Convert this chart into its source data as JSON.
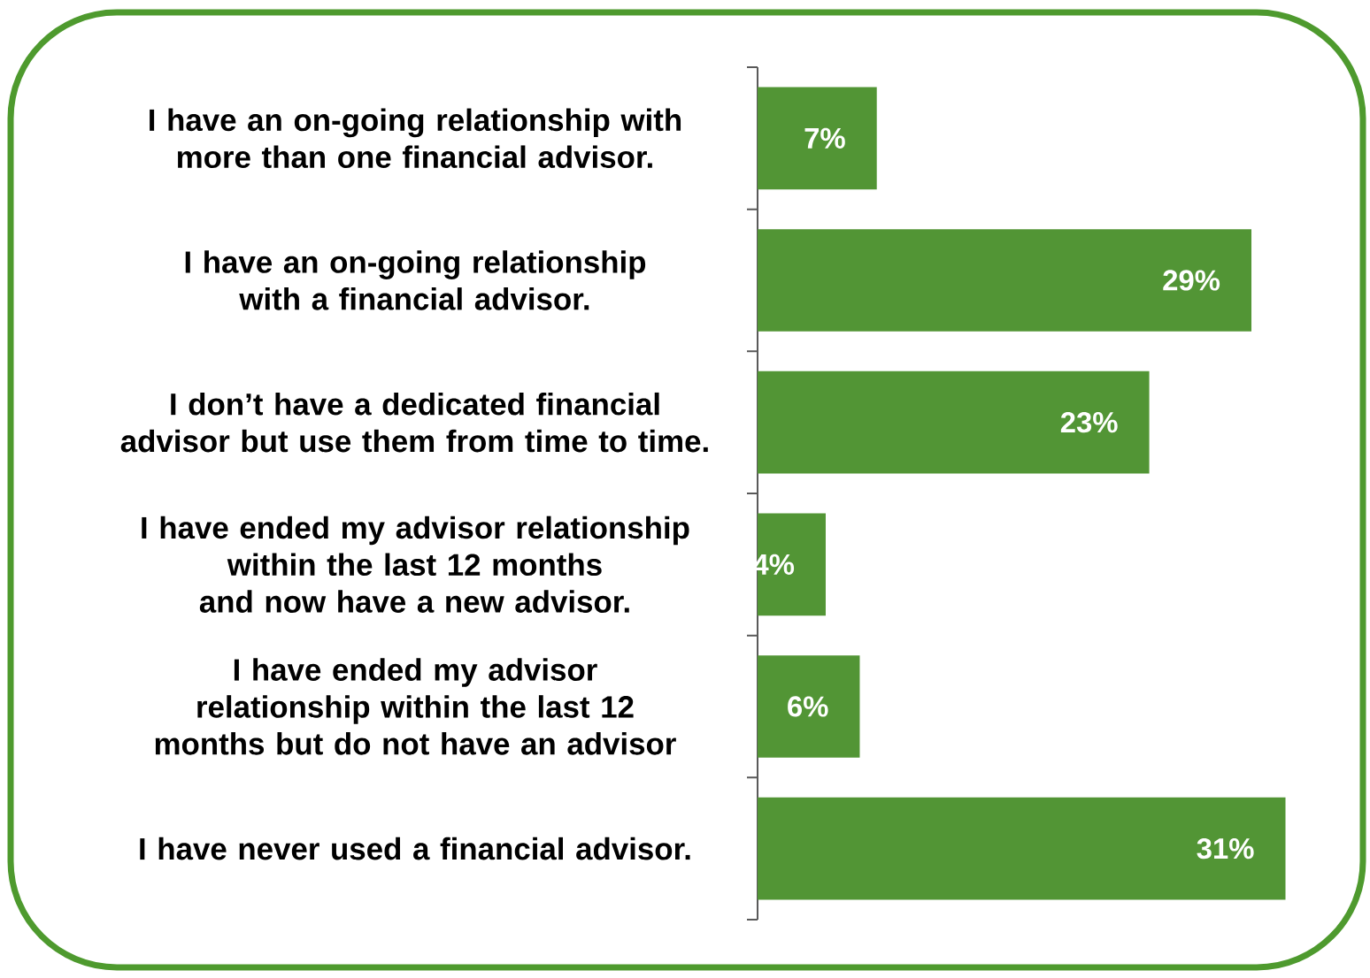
{
  "chart_data": {
    "type": "bar",
    "orientation": "horizontal",
    "categories": [
      "I have an on-going relationship with more than one financial advisor.",
      "I have an on-going relationship with a financial advisor.",
      "I don’t have a dedicated financial advisor but use them from time to time.",
      "I have ended my advisor relationship within the last 12 months and now have a new advisor.",
      "I have ended my advisor relationship within the last 12 months but do not have an advisor",
      "I have never used a financial advisor."
    ],
    "values": [
      7,
      29,
      23,
      4,
      6,
      31
    ],
    "value_labels": [
      "7%",
      "29%",
      "23%",
      "4%",
      "6%",
      "31%"
    ],
    "color": "#529535"
  }
}
